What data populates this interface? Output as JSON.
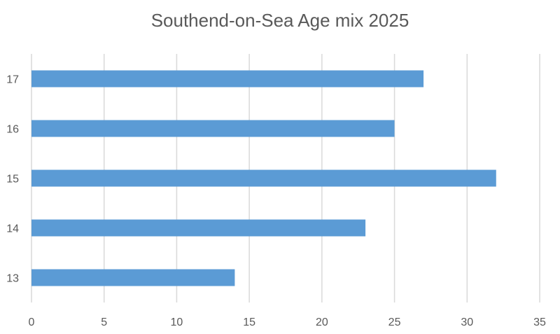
{
  "chart_data": {
    "type": "bar",
    "orientation": "horizontal",
    "title": "Southend-on-Sea  Age mix 2025",
    "xlabel": "",
    "ylabel": "",
    "categories": [
      "13",
      "14",
      "15",
      "16",
      "17"
    ],
    "values": [
      14,
      23,
      32,
      25,
      27
    ],
    "xlim": [
      0,
      35
    ],
    "x_ticks": [
      0,
      5,
      10,
      15,
      20,
      25,
      30,
      35
    ],
    "grid": true,
    "legend": "none",
    "bar_color": "#5b9bd5"
  }
}
